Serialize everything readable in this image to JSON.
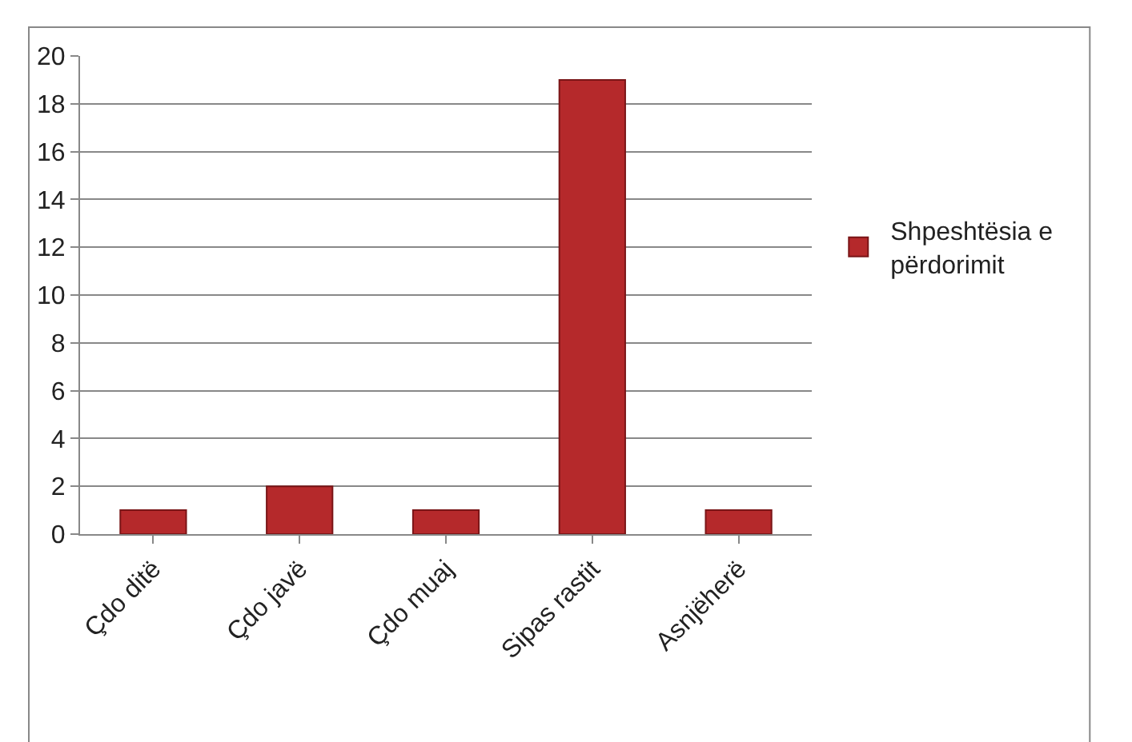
{
  "chart_data": {
    "type": "bar",
    "categories": [
      "Çdo ditë",
      "Çdo javë",
      "Çdo muaj",
      "Sipas rastit",
      "Asnjëherë"
    ],
    "series": [
      {
        "name": "Shpeshtësia e përdorimit",
        "color": "#b5292b",
        "values": [
          1,
          2,
          1,
          19,
          1
        ]
      }
    ],
    "ylim": [
      0,
      20
    ],
    "yticks": [
      0,
      2,
      4,
      6,
      8,
      10,
      12,
      14,
      16,
      18,
      20
    ],
    "grid": "y",
    "legend": "right"
  }
}
